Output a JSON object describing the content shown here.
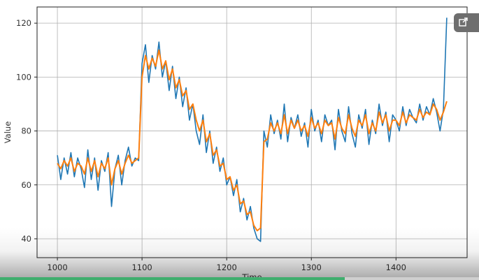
{
  "chart_data": {
    "type": "line",
    "title": "",
    "xlabel": "Time",
    "ylabel": "Value",
    "xlim": [
      976,
      1484
    ],
    "ylim": [
      33,
      126
    ],
    "grid": true,
    "x_ticks": [
      1000,
      1100,
      1200,
      1300,
      1400
    ],
    "y_ticks": [
      40,
      60,
      80,
      100,
      120
    ],
    "series": [
      {
        "color": "#1f77b4",
        "x": [
          1000,
          1004,
          1008,
          1012,
          1016,
          1020,
          1024,
          1028,
          1032,
          1036,
          1040,
          1044,
          1048,
          1052,
          1056,
          1060,
          1064,
          1068,
          1072,
          1076,
          1080,
          1084,
          1088,
          1092,
          1096,
          1100,
          1104,
          1108,
          1112,
          1116,
          1120,
          1124,
          1128,
          1132,
          1136,
          1140,
          1144,
          1148,
          1152,
          1156,
          1160,
          1164,
          1168,
          1172,
          1176,
          1180,
          1184,
          1188,
          1192,
          1196,
          1200,
          1204,
          1208,
          1212,
          1216,
          1220,
          1224,
          1228,
          1232,
          1236,
          1240,
          1244,
          1248,
          1252,
          1256,
          1260,
          1264,
          1268,
          1272,
          1276,
          1280,
          1284,
          1288,
          1292,
          1296,
          1300,
          1304,
          1308,
          1312,
          1316,
          1320,
          1324,
          1328,
          1332,
          1336,
          1340,
          1344,
          1348,
          1352,
          1356,
          1360,
          1364,
          1368,
          1372,
          1376,
          1380,
          1384,
          1388,
          1392,
          1396,
          1400,
          1404,
          1408,
          1412,
          1416,
          1420,
          1424,
          1428,
          1432,
          1436,
          1440,
          1444,
          1448,
          1452,
          1456,
          1460
        ],
        "y": [
          71,
          62,
          70,
          64,
          72,
          63,
          70,
          66,
          59,
          73,
          62,
          70,
          58,
          69,
          65,
          72,
          52,
          66,
          71,
          60,
          69,
          74,
          67,
          70,
          69,
          105,
          112,
          98,
          108,
          103,
          113,
          100,
          106,
          95,
          104,
          92,
          100,
          89,
          96,
          84,
          90,
          80,
          75,
          86,
          72,
          80,
          68,
          74,
          65,
          70,
          60,
          63,
          56,
          62,
          50,
          55,
          47,
          52,
          44,
          40,
          39,
          80,
          74,
          86,
          79,
          84,
          77,
          90,
          76,
          85,
          81,
          86,
          78,
          83,
          74,
          88,
          80,
          84,
          76,
          86,
          82,
          84,
          73,
          88,
          80,
          76,
          89,
          79,
          74,
          86,
          81,
          88,
          75,
          84,
          79,
          90,
          82,
          87,
          76,
          86,
          84,
          80,
          89,
          82,
          88,
          85,
          83,
          90,
          84,
          89,
          86,
          92,
          87,
          80,
          88,
          122
        ]
      },
      {
        "color": "#ff7f0e",
        "x": [
          1000,
          1004,
          1008,
          1012,
          1016,
          1020,
          1024,
          1028,
          1032,
          1036,
          1040,
          1044,
          1048,
          1052,
          1056,
          1060,
          1064,
          1068,
          1072,
          1076,
          1080,
          1084,
          1088,
          1092,
          1096,
          1100,
          1104,
          1108,
          1112,
          1116,
          1120,
          1124,
          1128,
          1132,
          1136,
          1140,
          1144,
          1148,
          1152,
          1156,
          1160,
          1164,
          1168,
          1172,
          1176,
          1180,
          1184,
          1188,
          1192,
          1196,
          1200,
          1204,
          1208,
          1212,
          1216,
          1220,
          1224,
          1228,
          1232,
          1236,
          1240,
          1244,
          1248,
          1252,
          1256,
          1260,
          1264,
          1268,
          1272,
          1276,
          1280,
          1284,
          1288,
          1292,
          1296,
          1300,
          1304,
          1308,
          1312,
          1316,
          1320,
          1324,
          1328,
          1332,
          1336,
          1340,
          1344,
          1348,
          1352,
          1356,
          1360,
          1364,
          1368,
          1372,
          1376,
          1380,
          1384,
          1388,
          1392,
          1396,
          1400,
          1404,
          1408,
          1412,
          1416,
          1420,
          1424,
          1428,
          1432,
          1436,
          1440,
          1444,
          1448,
          1452,
          1456,
          1460
        ],
        "y": [
          68,
          66,
          69,
          67,
          70,
          65,
          68,
          67,
          64,
          70,
          65,
          69,
          63,
          68,
          66,
          70,
          60,
          66,
          69,
          64,
          68,
          71,
          68,
          69,
          70,
          100,
          108,
          103,
          107,
          104,
          110,
          103,
          106,
          99,
          103,
          96,
          99,
          93,
          95,
          88,
          90,
          84,
          80,
          84,
          76,
          79,
          71,
          73,
          67,
          68,
          62,
          63,
          58,
          60,
          53,
          54,
          49,
          50,
          45,
          43,
          44,
          76,
          77,
          83,
          80,
          83,
          79,
          86,
          79,
          84,
          81,
          84,
          80,
          82,
          78,
          85,
          81,
          83,
          79,
          84,
          82,
          83,
          77,
          85,
          81,
          79,
          86,
          81,
          78,
          84,
          82,
          86,
          79,
          83,
          80,
          87,
          83,
          86,
          80,
          84,
          84,
          82,
          87,
          83,
          86,
          85,
          84,
          88,
          85,
          87,
          86,
          90,
          88,
          84,
          87,
          91
        ]
      }
    ]
  },
  "share_label": "↗  S",
  "progress": 0.72
}
